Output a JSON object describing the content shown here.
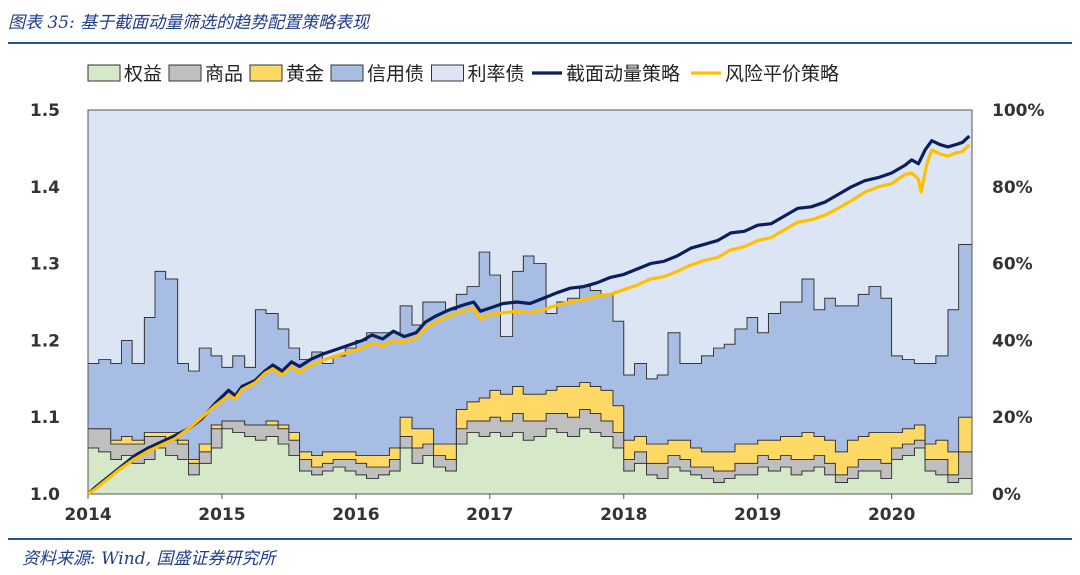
{
  "header": {
    "title": "图表 35: 基于截面动量筛选的趋势配置策略表现"
  },
  "footer": {
    "source": "资料来源: Wind, 国盛证券研究所"
  },
  "chart_data": {
    "type": "area",
    "x_axis": {
      "range": [
        2014.0,
        2020.6
      ],
      "ticks": [
        "2014",
        "2015",
        "2016",
        "2017",
        "2018",
        "2019",
        "2020"
      ]
    },
    "y_left": {
      "range": [
        1.0,
        1.5
      ],
      "ticks": [
        "1.0",
        "1.1",
        "1.2",
        "1.3",
        "1.4",
        "1.5"
      ]
    },
    "y_right": {
      "range": [
        0,
        100
      ],
      "ticks": [
        "0%",
        "20%",
        "40%",
        "60%",
        "80%",
        "100%"
      ]
    },
    "grid": false,
    "legend": {
      "placement": "top"
    },
    "weights": {
      "x": [
        2014.0,
        2014.08,
        2014.17,
        2014.25,
        2014.33,
        2014.42,
        2014.5,
        2014.58,
        2014.67,
        2014.75,
        2014.83,
        2014.92,
        2015.0,
        2015.08,
        2015.17,
        2015.25,
        2015.33,
        2015.42,
        2015.5,
        2015.58,
        2015.67,
        2015.75,
        2015.83,
        2015.92,
        2016.0,
        2016.08,
        2016.17,
        2016.25,
        2016.33,
        2016.42,
        2016.5,
        2016.58,
        2016.67,
        2016.75,
        2016.83,
        2016.92,
        2017.0,
        2017.08,
        2017.17,
        2017.25,
        2017.33,
        2017.42,
        2017.5,
        2017.58,
        2017.67,
        2017.75,
        2017.83,
        2017.92,
        2018.0,
        2018.08,
        2018.17,
        2018.25,
        2018.33,
        2018.42,
        2018.5,
        2018.58,
        2018.67,
        2018.75,
        2018.83,
        2018.92,
        2019.0,
        2019.08,
        2019.17,
        2019.25,
        2019.33,
        2019.42,
        2019.5,
        2019.58,
        2019.67,
        2019.75,
        2019.83,
        2019.92,
        2020.0,
        2020.08,
        2020.17,
        2020.25,
        2020.33,
        2020.42,
        2020.5
      ],
      "series": [
        {
          "name": "权益",
          "color": "#d5e8c8",
          "values": [
            12,
            11,
            9,
            10,
            8,
            9,
            12,
            10,
            9,
            5,
            8,
            12,
            17,
            16,
            15,
            14,
            15,
            13,
            10,
            6,
            5,
            6,
            7,
            6,
            5,
            4,
            5,
            6,
            12,
            8,
            10,
            7,
            6,
            13,
            16,
            15,
            16,
            15,
            16,
            14,
            15,
            17,
            16,
            15,
            17,
            16,
            15,
            12,
            6,
            8,
            5,
            4,
            7,
            6,
            5,
            4,
            3,
            4,
            5,
            5,
            7,
            6,
            7,
            5,
            6,
            7,
            5,
            3,
            4,
            6,
            6,
            4,
            9,
            10,
            12,
            6,
            5,
            3,
            4
          ]
        },
        {
          "name": "商品",
          "color": "#bfbfbf",
          "values": [
            5,
            6,
            4,
            3,
            5,
            6,
            3,
            4,
            4,
            3,
            3,
            5,
            2,
            3,
            3,
            4,
            3,
            4,
            4,
            3,
            2,
            2,
            2,
            3,
            3,
            3,
            2,
            3,
            3,
            4,
            3,
            3,
            3,
            4,
            3,
            4,
            4,
            4,
            5,
            5,
            4,
            4,
            5,
            5,
            5,
            5,
            4,
            4,
            3,
            3,
            3,
            4,
            3,
            3,
            2,
            3,
            3,
            2,
            3,
            3,
            3,
            3,
            3,
            4,
            3,
            3,
            3,
            2,
            3,
            3,
            3,
            4,
            3,
            3,
            2,
            3,
            4,
            2,
            7
          ]
        },
        {
          "name": "黄金",
          "color": "#ffd966",
          "values": [
            0,
            0,
            1,
            2,
            1,
            1,
            1,
            2,
            1,
            1,
            2,
            1,
            0,
            0,
            0,
            0,
            1,
            1,
            2,
            2,
            3,
            3,
            2,
            2,
            2,
            3,
            3,
            3,
            5,
            5,
            4,
            3,
            4,
            5,
            5,
            6,
            7,
            7,
            7,
            7,
            7,
            6,
            7,
            8,
            7,
            7,
            8,
            7,
            5,
            4,
            5,
            5,
            4,
            5,
            5,
            4,
            5,
            5,
            5,
            5,
            4,
            5,
            5,
            6,
            7,
            5,
            6,
            6,
            7,
            6,
            7,
            8,
            4,
            4,
            4,
            4,
            5,
            6,
            9
          ]
        },
        {
          "name": "信用债",
          "color": "#a7bde3",
          "values": [
            17,
            18,
            20,
            25,
            20,
            30,
            42,
            40,
            20,
            23,
            25,
            18,
            14,
            17,
            15,
            30,
            28,
            25,
            22,
            24,
            27,
            23,
            25,
            27,
            30,
            32,
            32,
            30,
            29,
            27,
            33,
            37,
            35,
            30,
            30,
            38,
            30,
            15,
            30,
            36,
            34,
            20,
            22,
            23,
            25,
            25,
            25,
            22,
            17,
            19,
            17,
            18,
            28,
            20,
            22,
            25,
            27,
            28,
            30,
            33,
            28,
            33,
            35,
            35,
            40,
            33,
            37,
            38,
            35,
            37,
            38,
            35,
            20,
            18,
            16,
            21,
            22,
            37,
            45
          ]
        },
        {
          "name": "利率债",
          "color": "#dce5f4",
          "values": [
            66,
            65,
            66,
            60,
            66,
            54,
            42,
            44,
            66,
            68,
            62,
            64,
            67,
            64,
            67,
            52,
            53,
            57,
            62,
            65,
            63,
            66,
            64,
            62,
            60,
            58,
            58,
            58,
            51,
            56,
            50,
            50,
            52,
            48,
            46,
            37,
            43,
            59,
            42,
            38,
            40,
            53,
            50,
            49,
            46,
            47,
            48,
            55,
            69,
            66,
            70,
            69,
            58,
            66,
            66,
            64,
            62,
            61,
            57,
            54,
            58,
            53,
            50,
            50,
            44,
            52,
            49,
            51,
            51,
            48,
            46,
            49,
            64,
            65,
            66,
            66,
            64,
            52,
            35
          ]
        }
      ]
    },
    "lines": [
      {
        "name": "截面动量策略",
        "color": "#0b1f5c",
        "width": 3.2,
        "points": [
          [
            2014.0,
            1.0
          ],
          [
            2014.05,
            1.008
          ],
          [
            2014.15,
            1.022
          ],
          [
            2014.25,
            1.036
          ],
          [
            2014.35,
            1.05
          ],
          [
            2014.45,
            1.06
          ],
          [
            2014.55,
            1.068
          ],
          [
            2014.65,
            1.076
          ],
          [
            2014.75,
            1.085
          ],
          [
            2014.85,
            1.098
          ],
          [
            2014.95,
            1.118
          ],
          [
            2015.05,
            1.135
          ],
          [
            2015.1,
            1.128
          ],
          [
            2015.15,
            1.14
          ],
          [
            2015.25,
            1.148
          ],
          [
            2015.32,
            1.16
          ],
          [
            2015.38,
            1.168
          ],
          [
            2015.45,
            1.16
          ],
          [
            2015.52,
            1.172
          ],
          [
            2015.58,
            1.166
          ],
          [
            2015.66,
            1.175
          ],
          [
            2015.75,
            1.182
          ],
          [
            2015.85,
            1.188
          ],
          [
            2015.95,
            1.194
          ],
          [
            2016.05,
            1.2
          ],
          [
            2016.12,
            1.207
          ],
          [
            2016.2,
            1.202
          ],
          [
            2016.28,
            1.212
          ],
          [
            2016.36,
            1.205
          ],
          [
            2016.45,
            1.21
          ],
          [
            2016.52,
            1.224
          ],
          [
            2016.6,
            1.232
          ],
          [
            2016.7,
            1.24
          ],
          [
            2016.8,
            1.246
          ],
          [
            2016.88,
            1.25
          ],
          [
            2016.93,
            1.238
          ],
          [
            2017.0,
            1.242
          ],
          [
            2017.1,
            1.248
          ],
          [
            2017.2,
            1.25
          ],
          [
            2017.3,
            1.248
          ],
          [
            2017.4,
            1.255
          ],
          [
            2017.5,
            1.262
          ],
          [
            2017.6,
            1.268
          ],
          [
            2017.7,
            1.27
          ],
          [
            2017.8,
            1.275
          ],
          [
            2017.9,
            1.282
          ],
          [
            2018.0,
            1.286
          ],
          [
            2018.1,
            1.293
          ],
          [
            2018.2,
            1.3
          ],
          [
            2018.3,
            1.303
          ],
          [
            2018.4,
            1.31
          ],
          [
            2018.5,
            1.32
          ],
          [
            2018.6,
            1.325
          ],
          [
            2018.7,
            1.33
          ],
          [
            2018.8,
            1.34
          ],
          [
            2018.9,
            1.342
          ],
          [
            2019.0,
            1.35
          ],
          [
            2019.1,
            1.352
          ],
          [
            2019.2,
            1.362
          ],
          [
            2019.3,
            1.372
          ],
          [
            2019.4,
            1.374
          ],
          [
            2019.5,
            1.38
          ],
          [
            2019.6,
            1.39
          ],
          [
            2019.7,
            1.4
          ],
          [
            2019.8,
            1.408
          ],
          [
            2019.9,
            1.412
          ],
          [
            2020.0,
            1.418
          ],
          [
            2020.1,
            1.428
          ],
          [
            2020.15,
            1.435
          ],
          [
            2020.2,
            1.43
          ],
          [
            2020.25,
            1.448
          ],
          [
            2020.3,
            1.46
          ],
          [
            2020.36,
            1.455
          ],
          [
            2020.42,
            1.452
          ],
          [
            2020.48,
            1.455
          ],
          [
            2020.53,
            1.458
          ],
          [
            2020.58,
            1.466
          ]
        ]
      },
      {
        "name": "风险平价策略",
        "color": "#ffc000",
        "width": 3.2,
        "points": [
          [
            2014.0,
            1.0
          ],
          [
            2014.05,
            1.006
          ],
          [
            2014.15,
            1.02
          ],
          [
            2014.25,
            1.034
          ],
          [
            2014.35,
            1.046
          ],
          [
            2014.45,
            1.056
          ],
          [
            2014.55,
            1.064
          ],
          [
            2014.65,
            1.072
          ],
          [
            2014.75,
            1.085
          ],
          [
            2014.85,
            1.1
          ],
          [
            2014.95,
            1.115
          ],
          [
            2015.05,
            1.128
          ],
          [
            2015.1,
            1.124
          ],
          [
            2015.15,
            1.136
          ],
          [
            2015.25,
            1.145
          ],
          [
            2015.32,
            1.157
          ],
          [
            2015.38,
            1.163
          ],
          [
            2015.45,
            1.155
          ],
          [
            2015.52,
            1.166
          ],
          [
            2015.58,
            1.158
          ],
          [
            2015.66,
            1.168
          ],
          [
            2015.75,
            1.174
          ],
          [
            2015.85,
            1.18
          ],
          [
            2015.95,
            1.185
          ],
          [
            2016.05,
            1.19
          ],
          [
            2016.12,
            1.196
          ],
          [
            2016.2,
            1.193
          ],
          [
            2016.28,
            1.2
          ],
          [
            2016.36,
            1.198
          ],
          [
            2016.45,
            1.203
          ],
          [
            2016.52,
            1.216
          ],
          [
            2016.6,
            1.224
          ],
          [
            2016.7,
            1.232
          ],
          [
            2016.8,
            1.238
          ],
          [
            2016.88,
            1.242
          ],
          [
            2016.93,
            1.228
          ],
          [
            2017.0,
            1.234
          ],
          [
            2017.1,
            1.236
          ],
          [
            2017.2,
            1.238
          ],
          [
            2017.3,
            1.236
          ],
          [
            2017.4,
            1.24
          ],
          [
            2017.5,
            1.246
          ],
          [
            2017.6,
            1.25
          ],
          [
            2017.7,
            1.253
          ],
          [
            2017.8,
            1.258
          ],
          [
            2017.9,
            1.26
          ],
          [
            2018.0,
            1.266
          ],
          [
            2018.1,
            1.272
          ],
          [
            2018.2,
            1.28
          ],
          [
            2018.3,
            1.283
          ],
          [
            2018.4,
            1.29
          ],
          [
            2018.5,
            1.298
          ],
          [
            2018.6,
            1.304
          ],
          [
            2018.7,
            1.308
          ],
          [
            2018.8,
            1.318
          ],
          [
            2018.9,
            1.322
          ],
          [
            2019.0,
            1.33
          ],
          [
            2019.1,
            1.334
          ],
          [
            2019.2,
            1.344
          ],
          [
            2019.3,
            1.354
          ],
          [
            2019.4,
            1.357
          ],
          [
            2019.5,
            1.363
          ],
          [
            2019.6,
            1.372
          ],
          [
            2019.7,
            1.382
          ],
          [
            2019.8,
            1.393
          ],
          [
            2019.9,
            1.4
          ],
          [
            2020.0,
            1.404
          ],
          [
            2020.1,
            1.416
          ],
          [
            2020.15,
            1.418
          ],
          [
            2020.2,
            1.41
          ],
          [
            2020.22,
            1.393
          ],
          [
            2020.26,
            1.428
          ],
          [
            2020.3,
            1.448
          ],
          [
            2020.36,
            1.443
          ],
          [
            2020.42,
            1.44
          ],
          [
            2020.48,
            1.444
          ],
          [
            2020.53,
            1.446
          ],
          [
            2020.58,
            1.455
          ]
        ]
      }
    ]
  }
}
